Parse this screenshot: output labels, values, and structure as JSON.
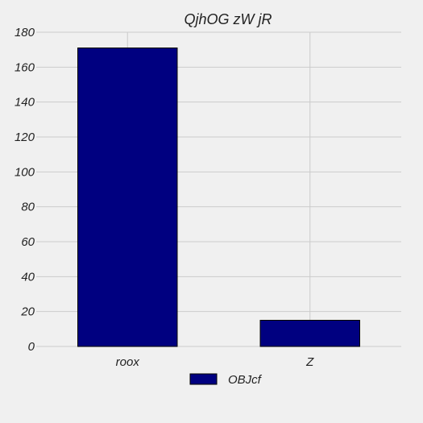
{
  "chart_data": {
    "type": "bar",
    "title": "QjhOG zW jR",
    "xlabel": "",
    "ylabel": "",
    "categories": [
      "roox",
      "Z"
    ],
    "series": [
      {
        "name": "OBJcf",
        "values": [
          171,
          15
        ],
        "color": "#000080"
      }
    ],
    "ylim": [
      0,
      180
    ],
    "yticks": [
      0,
      20,
      40,
      60,
      80,
      100,
      120,
      140,
      160,
      180
    ],
    "grid": true,
    "legend_position": "bottom-center",
    "colors": {
      "background": "#f0f0f0",
      "grid": "#cbcbcb",
      "bar": "#000080",
      "bar_edge": "#000000"
    }
  }
}
